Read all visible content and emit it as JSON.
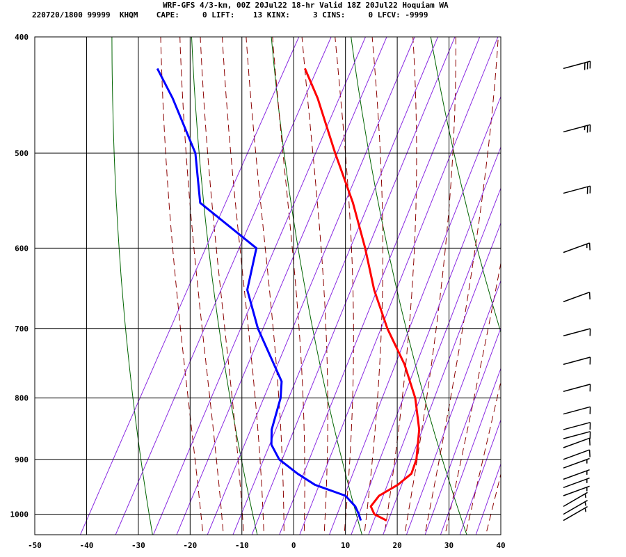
{
  "header": {
    "line1": "WRF-GFS 4/3-km, 00Z 20Jul22 18-hr Valid 18Z 20Jul22 Hoquiam WA",
    "line2": "220720/1800 99999  KHQM    CAPE:     0 LIFT:    13 KINX:     3 CINS:     0 LFCV: -9999"
  },
  "chart_data": {
    "type": "line",
    "subtype": "skew-T log-P sounding",
    "xlabel": "",
    "ylabel": "",
    "xlim": [
      -50,
      40
    ],
    "ylim": [
      1040,
      400
    ],
    "y_log_scale": true,
    "x_ticks": [
      "-50",
      "-40",
      "-30",
      "-20",
      "-10",
      "0",
      "10",
      "20",
      "30",
      "40"
    ],
    "x_tick_values": [
      -50,
      -40,
      -30,
      -20,
      -10,
      0,
      10,
      20,
      30,
      40
    ],
    "y_ticks": [
      "400",
      "500",
      "600",
      "700",
      "800",
      "900",
      "1000"
    ],
    "y_tick_values": [
      400,
      500,
      600,
      700,
      800,
      900,
      1000
    ],
    "grid": true,
    "colors": {
      "temperature": "#ff0000",
      "dewpoint": "#0000ff",
      "dry_adiabat": "#006400",
      "moist_adiabat": "#8b0000",
      "mixing_ratio": "#8a2be2",
      "grid": "#000000"
    },
    "series": [
      {
        "key": "temperature",
        "points": [
          {
            "p": 1012,
            "t": 16.5
          },
          {
            "p": 1000,
            "t": 13.5
          },
          {
            "p": 985,
            "t": 12.0
          },
          {
            "p": 965,
            "t": 12.5
          },
          {
            "p": 945,
            "t": 15.0
          },
          {
            "p": 925,
            "t": 16.5
          },
          {
            "p": 900,
            "t": 16.0
          },
          {
            "p": 850,
            "t": 13.5
          },
          {
            "p": 800,
            "t": 9.5
          },
          {
            "p": 750,
            "t": 4.0
          },
          {
            "p": 700,
            "t": -3.0
          },
          {
            "p": 650,
            "t": -9.5
          },
          {
            "p": 600,
            "t": -15.5
          },
          {
            "p": 550,
            "t": -22.5
          },
          {
            "p": 500,
            "t": -31.0
          },
          {
            "p": 450,
            "t": -40.0
          },
          {
            "p": 425,
            "t": -45.5
          }
        ]
      },
      {
        "key": "dewpoint",
        "points": [
          {
            "p": 1012,
            "t": 11.5
          },
          {
            "p": 1000,
            "t": 10.5
          },
          {
            "p": 985,
            "t": 9.0
          },
          {
            "p": 965,
            "t": 6.0
          },
          {
            "p": 945,
            "t": -1.0
          },
          {
            "p": 925,
            "t": -5.5
          },
          {
            "p": 900,
            "t": -10.5
          },
          {
            "p": 875,
            "t": -13.5
          },
          {
            "p": 850,
            "t": -15.0
          },
          {
            "p": 800,
            "t": -16.5
          },
          {
            "p": 775,
            "t": -18.0
          },
          {
            "p": 700,
            "t": -28.0
          },
          {
            "p": 650,
            "t": -34.0
          },
          {
            "p": 600,
            "t": -36.5
          },
          {
            "p": 550,
            "t": -52.0
          },
          {
            "p": 500,
            "t": -58.0
          },
          {
            "p": 450,
            "t": -68.0
          },
          {
            "p": 425,
            "t": -74.0
          }
        ]
      }
    ],
    "wind_barbs": [
      {
        "p": 1012,
        "dir": 240,
        "spd": 5
      },
      {
        "p": 1000,
        "dir": 240,
        "spd": 5
      },
      {
        "p": 985,
        "dir": 240,
        "spd": 5
      },
      {
        "p": 965,
        "dir": 250,
        "spd": 5
      },
      {
        "p": 950,
        "dir": 250,
        "spd": 5
      },
      {
        "p": 935,
        "dir": 250,
        "spd": 5
      },
      {
        "p": 915,
        "dir": 250,
        "spd": 5
      },
      {
        "p": 900,
        "dir": 250,
        "spd": 10
      },
      {
        "p": 880,
        "dir": 250,
        "spd": 10
      },
      {
        "p": 865,
        "dir": 255,
        "spd": 10
      },
      {
        "p": 850,
        "dir": 255,
        "spd": 10
      },
      {
        "p": 825,
        "dir": 255,
        "spd": 10
      },
      {
        "p": 790,
        "dir": 255,
        "spd": 10
      },
      {
        "p": 750,
        "dir": 255,
        "spd": 10
      },
      {
        "p": 710,
        "dir": 255,
        "spd": 10
      },
      {
        "p": 665,
        "dir": 250,
        "spd": 10
      },
      {
        "p": 605,
        "dir": 250,
        "spd": 15
      },
      {
        "p": 540,
        "dir": 255,
        "spd": 20
      },
      {
        "p": 480,
        "dir": 255,
        "spd": 25
      },
      {
        "p": 425,
        "dir": 255,
        "spd": 30
      }
    ]
  }
}
